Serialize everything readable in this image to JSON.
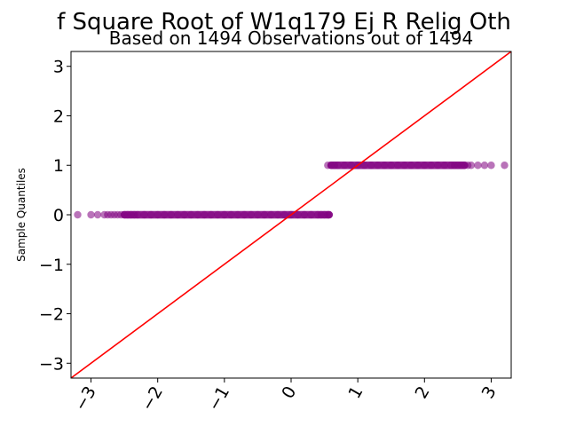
{
  "chart_data": {
    "type": "scatter",
    "title": "f Square Root of W1q179 Ej R Relig Oth",
    "subtitle": "Based on 1494 Observations out of 1494",
    "xlabel": "",
    "ylabel": "Sample Quantiles",
    "xlim": [
      -3.3,
      3.3
    ],
    "ylim": [
      -3.3,
      3.3
    ],
    "xticks": [
      -3,
      -2,
      -1,
      0,
      1,
      2,
      3
    ],
    "yticks": [
      -3,
      -2,
      -1,
      0,
      1,
      2,
      3
    ],
    "xtick_labels": [
      "−3",
      "−2",
      "−1",
      "0",
      "1",
      "2",
      "3"
    ],
    "ytick_labels": [
      "−3",
      "−2",
      "−1",
      "0",
      "1",
      "2",
      "3"
    ],
    "grid": false,
    "point_color": "#800080",
    "line_color": "#ff0000",
    "reference_line": {
      "slope": 1,
      "intercept": 0
    },
    "series": [
      {
        "values_at_0": [
          -3.2,
          -3.0,
          -2.9,
          -2.8,
          -2.75,
          -2.7,
          -2.65,
          -2.6,
          -2.55,
          -2.5,
          -2.45,
          -2.4,
          -2.35,
          -2.3,
          -2.2,
          -2.1,
          -2.0,
          -1.9,
          -1.8,
          -1.7,
          -1.6,
          -1.5,
          -1.4,
          -1.3,
          -1.2,
          -1.1,
          -1.0,
          -0.9,
          -0.8,
          -0.7,
          -0.6,
          -0.5,
          -0.4,
          -0.3,
          -0.2,
          -0.1,
          0.0,
          0.1,
          0.2,
          0.3,
          0.4,
          0.45,
          0.5,
          0.55,
          0.57
        ],
        "values_at_1": [
          0.55,
          0.6,
          0.65,
          0.7,
          0.8,
          0.9,
          1.0,
          1.1,
          1.2,
          1.3,
          1.4,
          1.5,
          1.6,
          1.7,
          1.8,
          1.9,
          2.0,
          2.1,
          2.2,
          2.3,
          2.4,
          2.45,
          2.5,
          2.55,
          2.6,
          2.65,
          2.7,
          2.8,
          2.9,
          3.0,
          3.2
        ]
      }
    ]
  }
}
